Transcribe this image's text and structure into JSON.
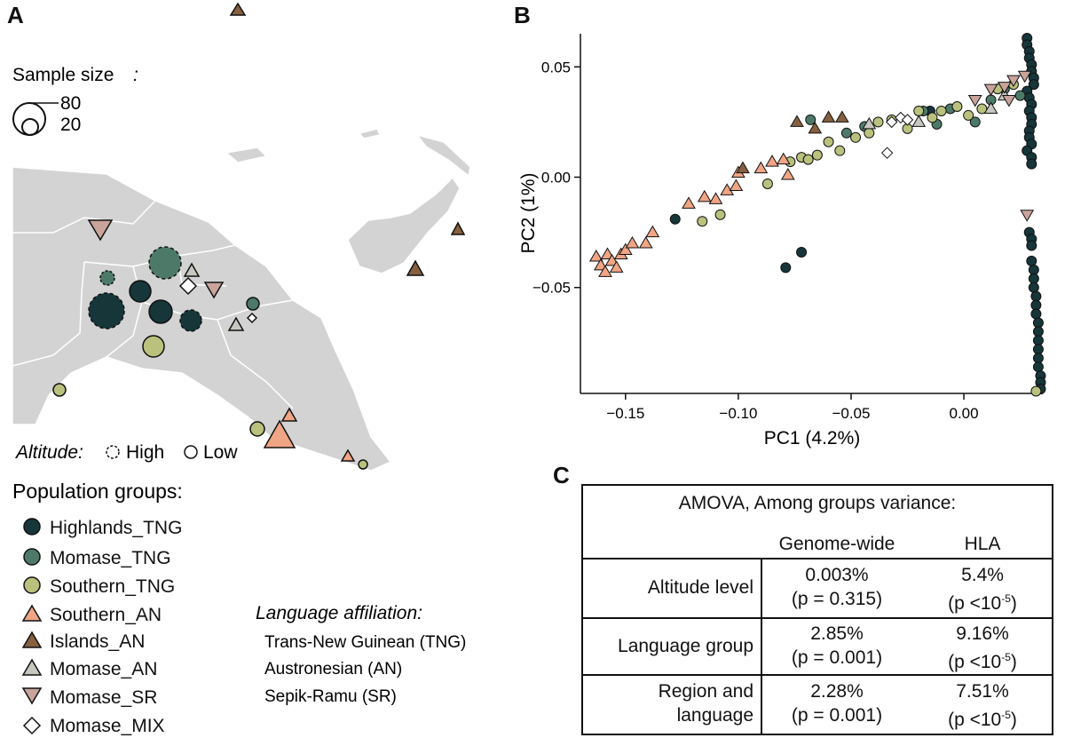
{
  "panels": {
    "a": "A",
    "b": "B",
    "c": "C"
  },
  "map": {
    "sample_size_title": "Sample size",
    "sample_size_colon": ":",
    "sample_size_values": [
      "80",
      "20"
    ],
    "altitude_label": "Altitude:",
    "altitude_high": "High",
    "altitude_low": "Low"
  },
  "legend": {
    "title": "Population groups:",
    "items": [
      {
        "name": "Highlands_TNG",
        "shape": "circle",
        "color": "#16363a"
      },
      {
        "name": "Momase_TNG",
        "shape": "circle",
        "color": "#4d7a68"
      },
      {
        "name": "Southern_TNG",
        "shape": "circle",
        "color": "#b9c17d"
      },
      {
        "name": "Southern_AN",
        "shape": "triangle-up",
        "color": "#f0a585"
      },
      {
        "name": "Islands_AN",
        "shape": "triangle-up",
        "color": "#86603f"
      },
      {
        "name": "Momase_AN",
        "shape": "triangle-up",
        "color": "#c7c7c0"
      },
      {
        "name": "Momase_SR",
        "shape": "triangle-down",
        "color": "#c9a49c"
      },
      {
        "name": "Momase_MIX",
        "shape": "diamond",
        "color": "#ffffff"
      }
    ]
  },
  "language": {
    "title": "Language affiliation:",
    "items": [
      "Trans-New Guinean (TNG)",
      "Austronesian (AN)",
      "Sepik-Ramu (SR)"
    ]
  },
  "chart_data": {
    "type": "scatter",
    "xlabel": "PC1 (4.2%)",
    "ylabel": "PC2 (1%)",
    "xlim": [
      -0.17,
      0.035
    ],
    "ylim": [
      -0.098,
      0.065
    ],
    "xticks": [
      -0.15,
      -0.1,
      -0.05,
      0.0
    ],
    "xtick_labels": [
      "−0.15",
      "−0.10",
      "−0.05",
      "0.00"
    ],
    "yticks": [
      -0.05,
      0.0,
      0.05
    ],
    "ytick_labels": [
      "−0.05",
      "0.00",
      "0.05"
    ],
    "series": [
      {
        "name": "Highlands_TNG",
        "points": [
          [
            -0.128,
            -0.019
          ],
          [
            -0.079,
            -0.041
          ],
          [
            -0.072,
            -0.034
          ],
          [
            -0.015,
            0.03
          ],
          [
            0.028,
            0.063
          ],
          [
            0.028,
            0.06
          ],
          [
            0.029,
            0.057
          ],
          [
            0.029,
            0.054
          ],
          [
            0.03,
            0.051
          ],
          [
            0.03,
            0.048
          ],
          [
            0.031,
            0.045
          ],
          [
            0.031,
            0.042
          ],
          [
            0.028,
            0.039
          ],
          [
            0.029,
            0.036
          ],
          [
            0.03,
            0.033
          ],
          [
            0.029,
            0.03
          ],
          [
            0.03,
            0.027
          ],
          [
            0.03,
            0.024
          ],
          [
            0.029,
            0.021
          ],
          [
            0.029,
            0.018
          ],
          [
            0.03,
            0.015
          ],
          [
            0.028,
            0.012
          ],
          [
            0.03,
            0.009
          ],
          [
            0.03,
            0.006
          ],
          [
            0.029,
            -0.025
          ],
          [
            0.03,
            -0.028
          ],
          [
            0.03,
            -0.031
          ],
          [
            0.03,
            -0.038
          ],
          [
            0.031,
            -0.042
          ],
          [
            0.031,
            -0.046
          ],
          [
            0.031,
            -0.05
          ],
          [
            0.032,
            -0.054
          ],
          [
            0.032,
            -0.058
          ],
          [
            0.032,
            -0.062
          ],
          [
            0.033,
            -0.066
          ],
          [
            0.033,
            -0.07
          ],
          [
            0.033,
            -0.074
          ],
          [
            0.033,
            -0.078
          ],
          [
            0.033,
            -0.082
          ],
          [
            0.033,
            -0.086
          ],
          [
            0.034,
            -0.09
          ],
          [
            0.034,
            -0.093
          ],
          [
            0.034,
            -0.096
          ]
        ]
      },
      {
        "name": "Momase_TNG",
        "points": [
          [
            -0.068,
            0.026
          ],
          [
            -0.052,
            0.02
          ],
          [
            -0.044,
            0.023
          ],
          [
            -0.018,
            0.03
          ],
          [
            -0.012,
            0.024
          ],
          [
            -0.006,
            0.031
          ],
          [
            0.005,
            0.025
          ],
          [
            0.012,
            0.035
          ],
          [
            0.018,
            0.04
          ],
          [
            0.025,
            0.037
          ]
        ]
      },
      {
        "name": "Southern_TNG",
        "points": [
          [
            -0.116,
            -0.02
          ],
          [
            -0.108,
            -0.017
          ],
          [
            -0.087,
            -0.003
          ],
          [
            -0.077,
            0.007
          ],
          [
            -0.072,
            0.009
          ],
          [
            -0.069,
            0.008
          ],
          [
            -0.065,
            0.01
          ],
          [
            -0.06,
            0.016
          ],
          [
            -0.055,
            0.012
          ],
          [
            -0.048,
            0.018
          ],
          [
            -0.042,
            0.02
          ],
          [
            -0.038,
            0.025
          ],
          [
            -0.032,
            0.026
          ],
          [
            -0.025,
            0.022
          ],
          [
            -0.02,
            0.03
          ],
          [
            -0.014,
            0.027
          ],
          [
            -0.01,
            0.03
          ],
          [
            -0.003,
            0.032
          ],
          [
            0.002,
            0.028
          ],
          [
            0.008,
            0.031
          ],
          [
            0.015,
            0.04
          ],
          [
            0.022,
            0.042
          ],
          [
            0.032,
            -0.097
          ]
        ]
      },
      {
        "name": "Southern_AN",
        "points": [
          [
            -0.163,
            -0.036
          ],
          [
            -0.161,
            -0.04
          ],
          [
            -0.159,
            -0.043
          ],
          [
            -0.158,
            -0.035
          ],
          [
            -0.156,
            -0.038
          ],
          [
            -0.154,
            -0.041
          ],
          [
            -0.152,
            -0.035
          ],
          [
            -0.15,
            -0.033
          ],
          [
            -0.147,
            -0.03
          ],
          [
            -0.141,
            -0.03
          ],
          [
            -0.138,
            -0.025
          ],
          [
            -0.122,
            -0.012
          ],
          [
            -0.115,
            -0.009
          ],
          [
            -0.11,
            -0.01
          ],
          [
            -0.105,
            -0.006
          ],
          [
            -0.101,
            -0.004
          ],
          [
            -0.1,
            0.002
          ],
          [
            -0.09,
            0.004
          ],
          [
            -0.085,
            0.007
          ],
          [
            -0.08,
            0.008
          ],
          [
            -0.078,
            0.001
          ]
        ]
      },
      {
        "name": "Islands_AN",
        "points": [
          [
            -0.098,
            0.004
          ],
          [
            -0.074,
            0.025
          ],
          [
            -0.066,
            0.022
          ],
          [
            -0.06,
            0.027
          ],
          [
            -0.054,
            0.027
          ]
        ]
      },
      {
        "name": "Momase_AN",
        "points": [
          [
            -0.042,
            0.024
          ],
          [
            -0.02,
            0.025
          ],
          [
            0.012,
            0.031
          ],
          [
            0.018,
            0.037
          ]
        ]
      },
      {
        "name": "Momase_SR",
        "points": [
          [
            0.005,
            0.035
          ],
          [
            0.012,
            0.04
          ],
          [
            0.018,
            0.041
          ],
          [
            0.022,
            0.044
          ],
          [
            0.027,
            0.046
          ],
          [
            0.02,
            0.035
          ],
          [
            0.028,
            -0.017
          ]
        ]
      },
      {
        "name": "Momase_MIX",
        "points": [
          [
            -0.034,
            0.011
          ],
          [
            -0.032,
            0.025
          ],
          [
            -0.028,
            0.027
          ],
          [
            -0.025,
            0.026
          ]
        ]
      }
    ]
  },
  "amova": {
    "title": "AMOVA, Among groups variance:",
    "col_headers": [
      "Genome-wide",
      "HLA"
    ],
    "rows": [
      {
        "label_lines": [
          "Altitude level"
        ],
        "genome": [
          "0.003%",
          "(p = 0.315)"
        ],
        "hla": [
          "5.4%",
          "(p <10",
          "-5",
          ")"
        ]
      },
      {
        "label_lines": [
          "Language group"
        ],
        "genome": [
          "2.85%",
          "(p = 0.001)"
        ],
        "hla": [
          "9.16%",
          "(p <10",
          "-5",
          ")"
        ]
      },
      {
        "label_lines": [
          "Region and",
          "language"
        ],
        "genome": [
          "2.28%",
          "(p = 0.001)"
        ],
        "hla": [
          "7.51%",
          "(p <10",
          "-5",
          ")"
        ]
      }
    ]
  }
}
